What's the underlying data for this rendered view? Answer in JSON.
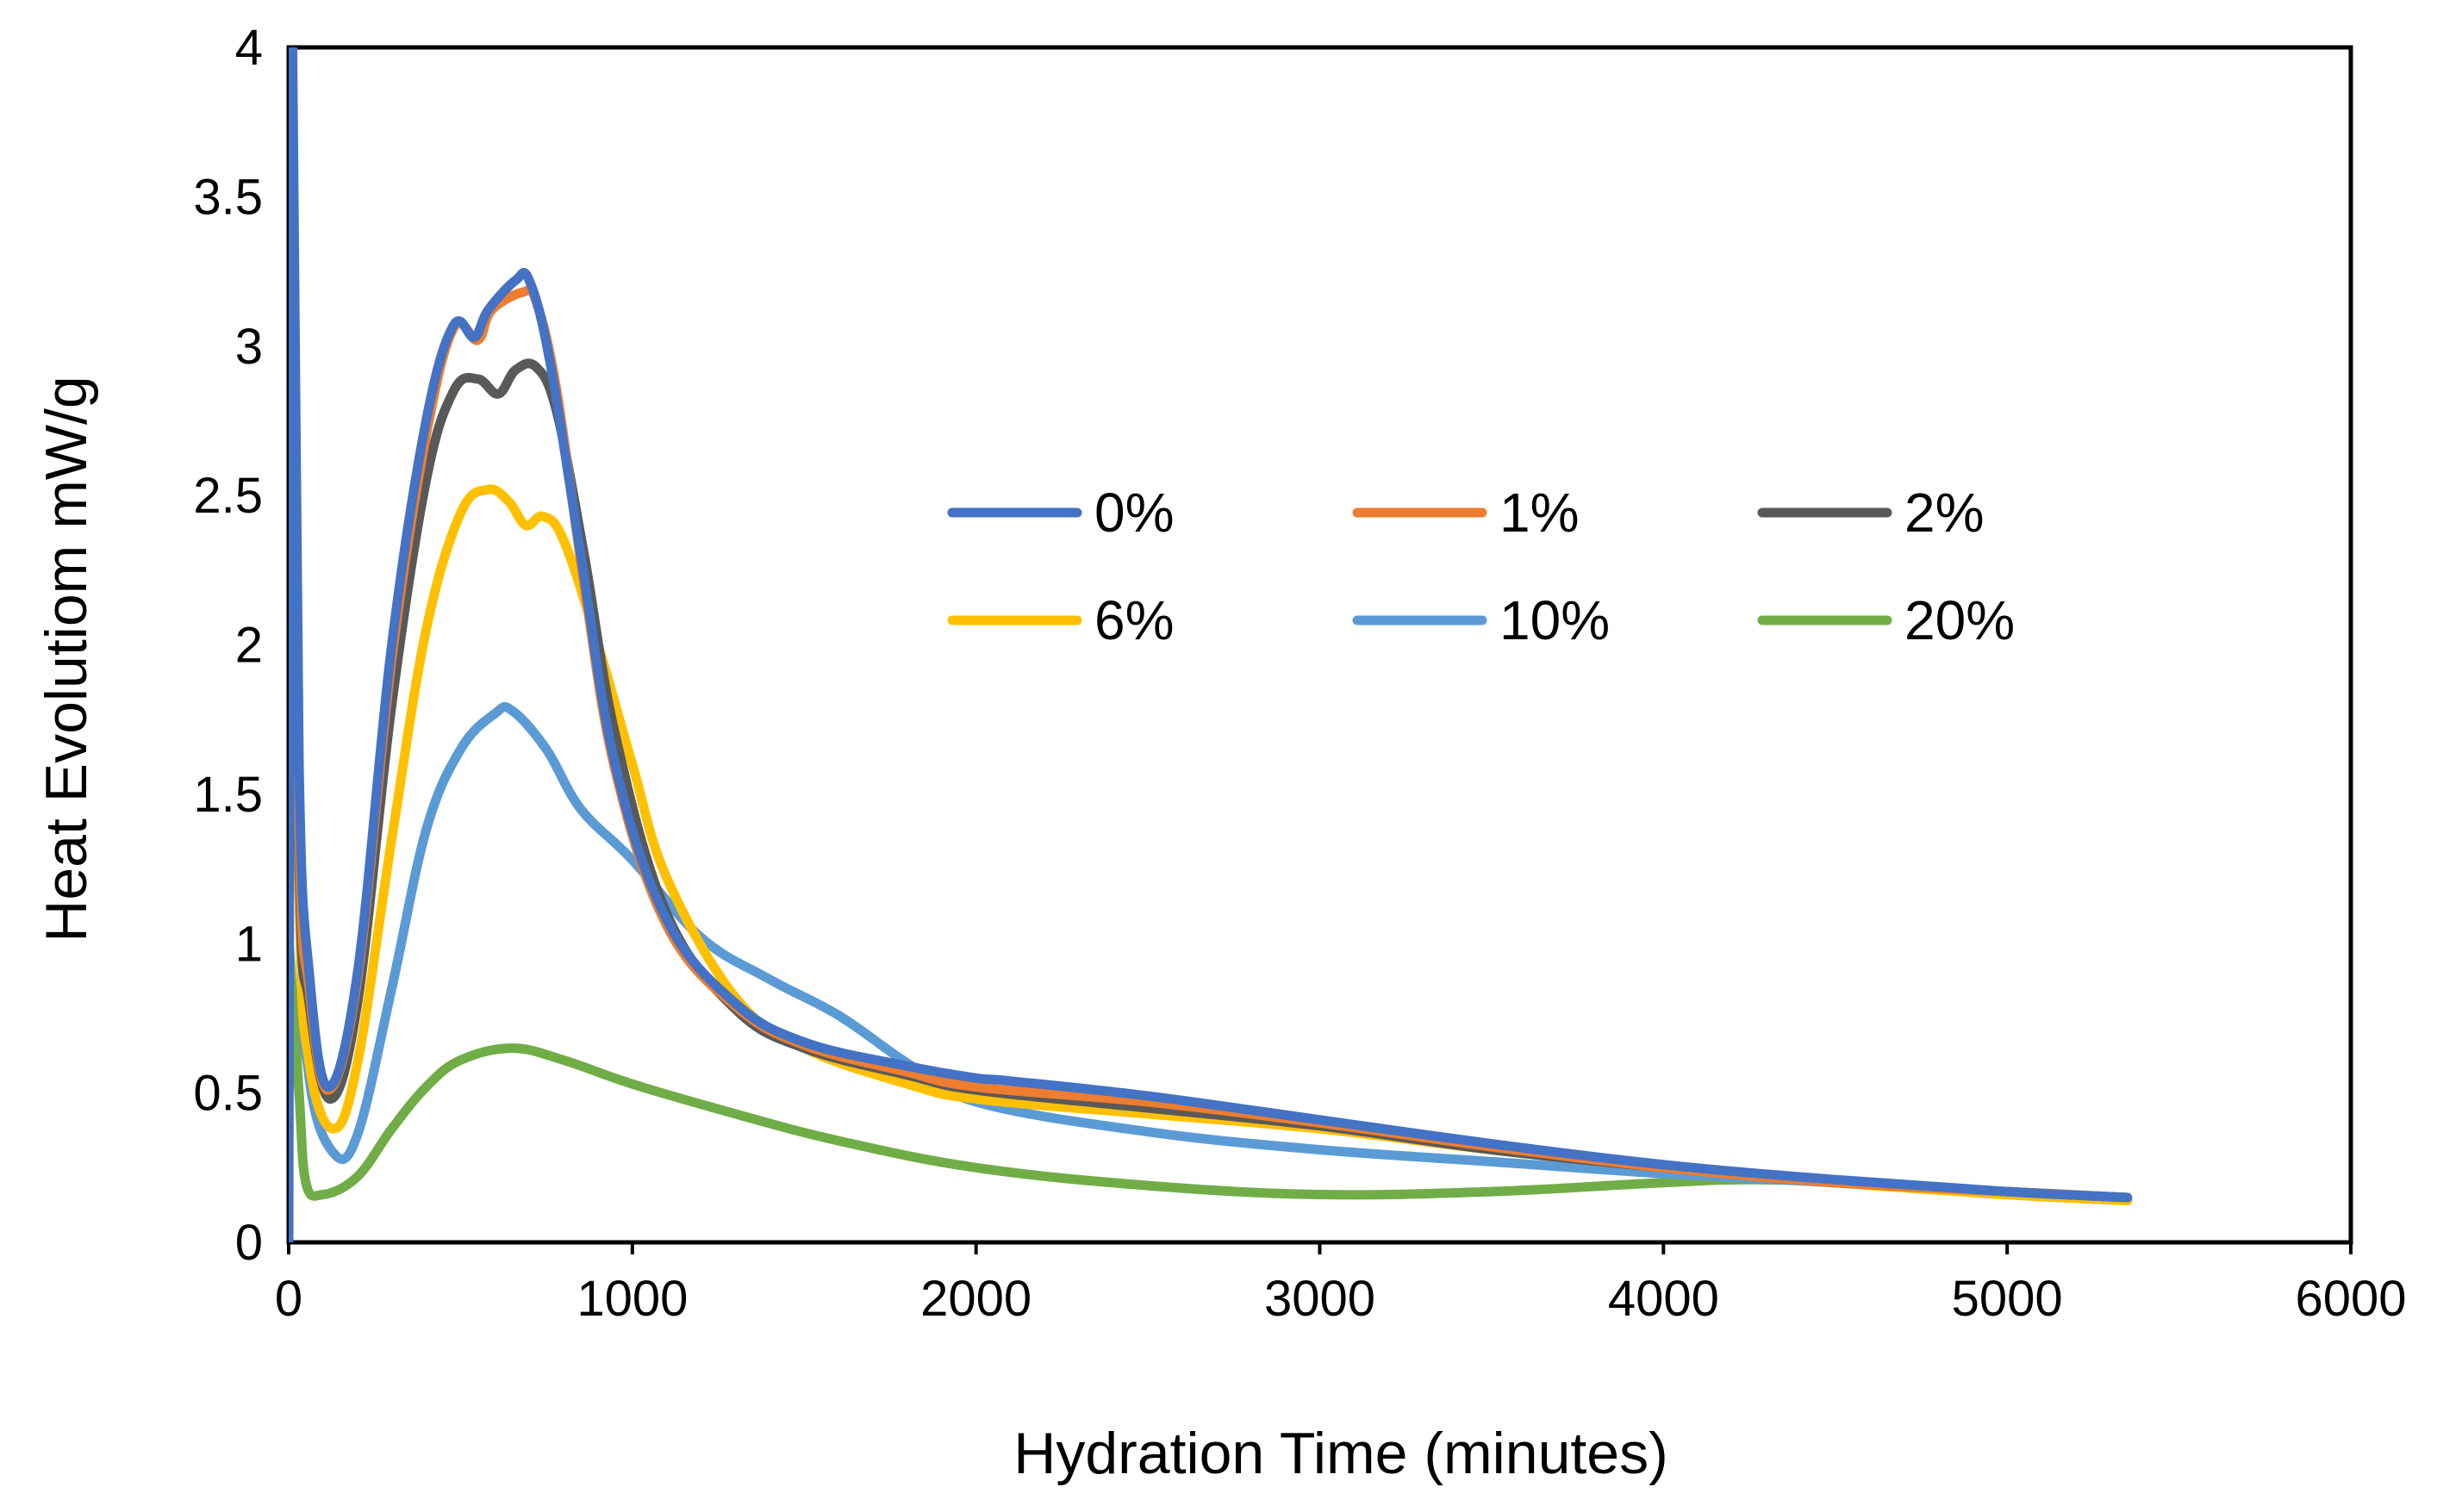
{
  "chart_data": {
    "type": "line",
    "xlabel": "Hydration Time (minutes)",
    "ylabel": "Heat Evolutiom mW/g",
    "xlim": [
      0,
      6000
    ],
    "ylim": [
      0,
      4
    ],
    "x_ticks": [
      "0",
      "1000",
      "2000",
      "3000",
      "4000",
      "5000",
      "6000"
    ],
    "y_ticks": [
      "0",
      "0.5",
      "1",
      "1.5",
      "2",
      "2.5",
      "3",
      "3.5",
      "4"
    ],
    "x_tick_values": [
      0,
      1000,
      2000,
      3000,
      4000,
      5000,
      6000
    ],
    "y_tick_values": [
      0,
      0.5,
      1,
      1.5,
      2,
      2.5,
      3,
      3.5,
      4
    ],
    "grid": false,
    "legend_position": "center-right, inside plot",
    "series": [
      {
        "name": "0%",
        "color": "#4472C4",
        "points": [
          [
            0,
            0
          ],
          [
            10,
            4
          ],
          [
            30,
            1.6
          ],
          [
            60,
            0.9
          ],
          [
            115,
            0.52
          ],
          [
            200,
            0.9
          ],
          [
            300,
            2.0
          ],
          [
            400,
            2.75
          ],
          [
            480,
            3.07
          ],
          [
            540,
            3.03
          ],
          [
            580,
            3.12
          ],
          [
            660,
            3.22
          ],
          [
            700,
            3.22
          ],
          [
            760,
            2.95
          ],
          [
            850,
            2.3
          ],
          [
            950,
            1.6
          ],
          [
            1100,
            1.08
          ],
          [
            1300,
            0.8
          ],
          [
            1500,
            0.67
          ],
          [
            1800,
            0.59
          ],
          [
            2000,
            0.55
          ],
          [
            2100,
            0.54
          ],
          [
            2500,
            0.49
          ],
          [
            3000,
            0.41
          ],
          [
            3500,
            0.33
          ],
          [
            4000,
            0.26
          ],
          [
            4500,
            0.21
          ],
          [
            5000,
            0.17
          ],
          [
            5350,
            0.15
          ]
        ]
      },
      {
        "name": "1%",
        "color": "#ED7D31",
        "points": [
          [
            0,
            4
          ],
          [
            30,
            1.4
          ],
          [
            60,
            0.85
          ],
          [
            115,
            0.51
          ],
          [
            200,
            0.88
          ],
          [
            300,
            1.95
          ],
          [
            400,
            2.7
          ],
          [
            480,
            3.06
          ],
          [
            550,
            3.02
          ],
          [
            590,
            3.12
          ],
          [
            680,
            3.18
          ],
          [
            720,
            3.15
          ],
          [
            780,
            2.85
          ],
          [
            860,
            2.2
          ],
          [
            950,
            1.58
          ],
          [
            1100,
            1.06
          ],
          [
            1300,
            0.79
          ],
          [
            1500,
            0.66
          ],
          [
            1800,
            0.57
          ],
          [
            2000,
            0.52
          ],
          [
            2500,
            0.47
          ],
          [
            3000,
            0.4
          ],
          [
            3500,
            0.32
          ],
          [
            4000,
            0.25
          ],
          [
            4500,
            0.2
          ],
          [
            5000,
            0.17
          ],
          [
            5350,
            0.15
          ]
        ]
      },
      {
        "name": "2%",
        "color": "#595959",
        "points": [
          [
            0,
            3.9
          ],
          [
            30,
            1.3
          ],
          [
            60,
            0.8
          ],
          [
            120,
            0.48
          ],
          [
            200,
            0.8
          ],
          [
            300,
            1.8
          ],
          [
            400,
            2.55
          ],
          [
            480,
            2.85
          ],
          [
            550,
            2.89
          ],
          [
            610,
            2.84
          ],
          [
            660,
            2.92
          ],
          [
            720,
            2.93
          ],
          [
            780,
            2.78
          ],
          [
            860,
            2.3
          ],
          [
            950,
            1.7
          ],
          [
            1100,
            1.1
          ],
          [
            1300,
            0.78
          ],
          [
            1500,
            0.65
          ],
          [
            1800,
            0.56
          ],
          [
            2000,
            0.51
          ],
          [
            2500,
            0.45
          ],
          [
            3000,
            0.39
          ],
          [
            3500,
            0.31
          ],
          [
            4000,
            0.25
          ],
          [
            4500,
            0.2
          ],
          [
            5000,
            0.17
          ],
          [
            5350,
            0.15
          ]
        ]
      },
      {
        "name": "6%",
        "color": "#FFC000",
        "points": [
          [
            0,
            3.7
          ],
          [
            30,
            1.2
          ],
          [
            60,
            0.6
          ],
          [
            130,
            0.38
          ],
          [
            200,
            0.6
          ],
          [
            300,
            1.35
          ],
          [
            400,
            2.05
          ],
          [
            500,
            2.44
          ],
          [
            580,
            2.52
          ],
          [
            640,
            2.48
          ],
          [
            690,
            2.4
          ],
          [
            740,
            2.43
          ],
          [
            800,
            2.35
          ],
          [
            900,
            2.0
          ],
          [
            1000,
            1.6
          ],
          [
            1100,
            1.22
          ],
          [
            1300,
            0.82
          ],
          [
            1500,
            0.65
          ],
          [
            1800,
            0.53
          ],
          [
            2000,
            0.48
          ],
          [
            2500,
            0.43
          ],
          [
            3000,
            0.38
          ],
          [
            3500,
            0.31
          ],
          [
            4000,
            0.25
          ],
          [
            4500,
            0.2
          ],
          [
            5000,
            0.16
          ],
          [
            5350,
            0.14
          ]
        ]
      },
      {
        "name": "10%",
        "color": "#5B9BD5",
        "points": [
          [
            0,
            3.9
          ],
          [
            30,
            1.2
          ],
          [
            60,
            0.55
          ],
          [
            130,
            0.3
          ],
          [
            200,
            0.36
          ],
          [
            300,
            0.85
          ],
          [
            400,
            1.38
          ],
          [
            500,
            1.65
          ],
          [
            600,
            1.77
          ],
          [
            650,
            1.78
          ],
          [
            750,
            1.65
          ],
          [
            850,
            1.45
          ],
          [
            1000,
            1.28
          ],
          [
            1200,
            1.02
          ],
          [
            1400,
            0.88
          ],
          [
            1600,
            0.76
          ],
          [
            1800,
            0.6
          ],
          [
            2000,
            0.47
          ],
          [
            2500,
            0.37
          ],
          [
            3000,
            0.31
          ],
          [
            3500,
            0.27
          ],
          [
            4000,
            0.23
          ],
          [
            4500,
            0.2
          ],
          [
            5000,
            0.16
          ],
          [
            5350,
            0.14
          ]
        ]
      },
      {
        "name": "20%",
        "color": "#70AD47",
        "points": [
          [
            0,
            1.02
          ],
          [
            30,
            0.5
          ],
          [
            50,
            0.2
          ],
          [
            100,
            0.16
          ],
          [
            200,
            0.22
          ],
          [
            300,
            0.38
          ],
          [
            400,
            0.52
          ],
          [
            500,
            0.61
          ],
          [
            650,
            0.65
          ],
          [
            800,
            0.61
          ],
          [
            1000,
            0.53
          ],
          [
            1300,
            0.43
          ],
          [
            1600,
            0.34
          ],
          [
            2000,
            0.25
          ],
          [
            2500,
            0.19
          ],
          [
            3000,
            0.16
          ],
          [
            3500,
            0.17
          ],
          [
            4000,
            0.2
          ],
          [
            4250,
            0.21
          ],
          [
            4500,
            0.2
          ],
          [
            5000,
            0.16
          ],
          [
            5350,
            0.14
          ]
        ]
      }
    ]
  }
}
